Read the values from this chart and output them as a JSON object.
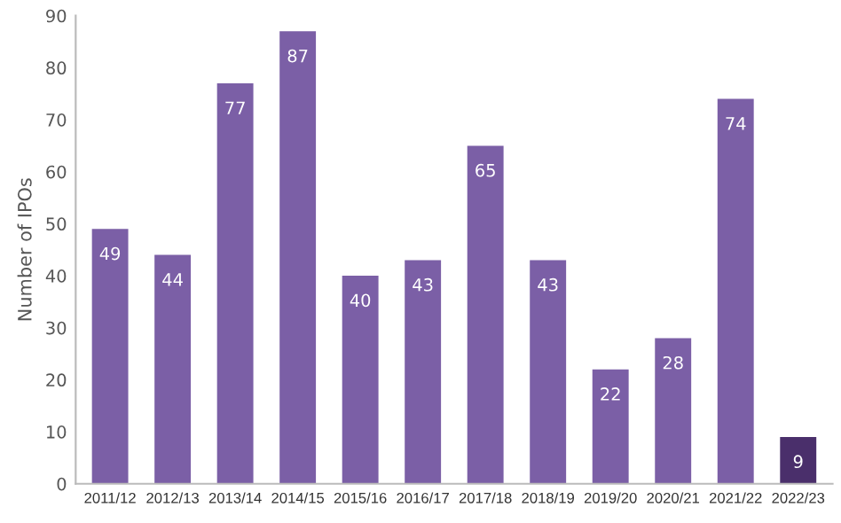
{
  "chart_data": {
    "type": "bar",
    "ylabel": "Number of IPOs",
    "categories": [
      "2011/12",
      "2012/13",
      "2013/14",
      "2014/15",
      "2015/16",
      "2016/17",
      "2017/18",
      "2018/19",
      "2019/20",
      "2020/21",
      "2021/22",
      "2022/23"
    ],
    "values": [
      49,
      44,
      77,
      87,
      40,
      43,
      65,
      43,
      22,
      28,
      74,
      9
    ],
    "colors": [
      "#7b5fa6",
      "#7b5fa6",
      "#7b5fa6",
      "#7b5fa6",
      "#7b5fa6",
      "#7b5fa6",
      "#7b5fa6",
      "#7b5fa6",
      "#7b5fa6",
      "#7b5fa6",
      "#7b5fa6",
      "#4a2f6b"
    ],
    "ylim": [
      0,
      90
    ],
    "yticks": [
      0,
      10,
      20,
      30,
      40,
      50,
      60,
      70,
      80,
      90
    ],
    "data_labels": true,
    "grid": false,
    "legend": false
  }
}
